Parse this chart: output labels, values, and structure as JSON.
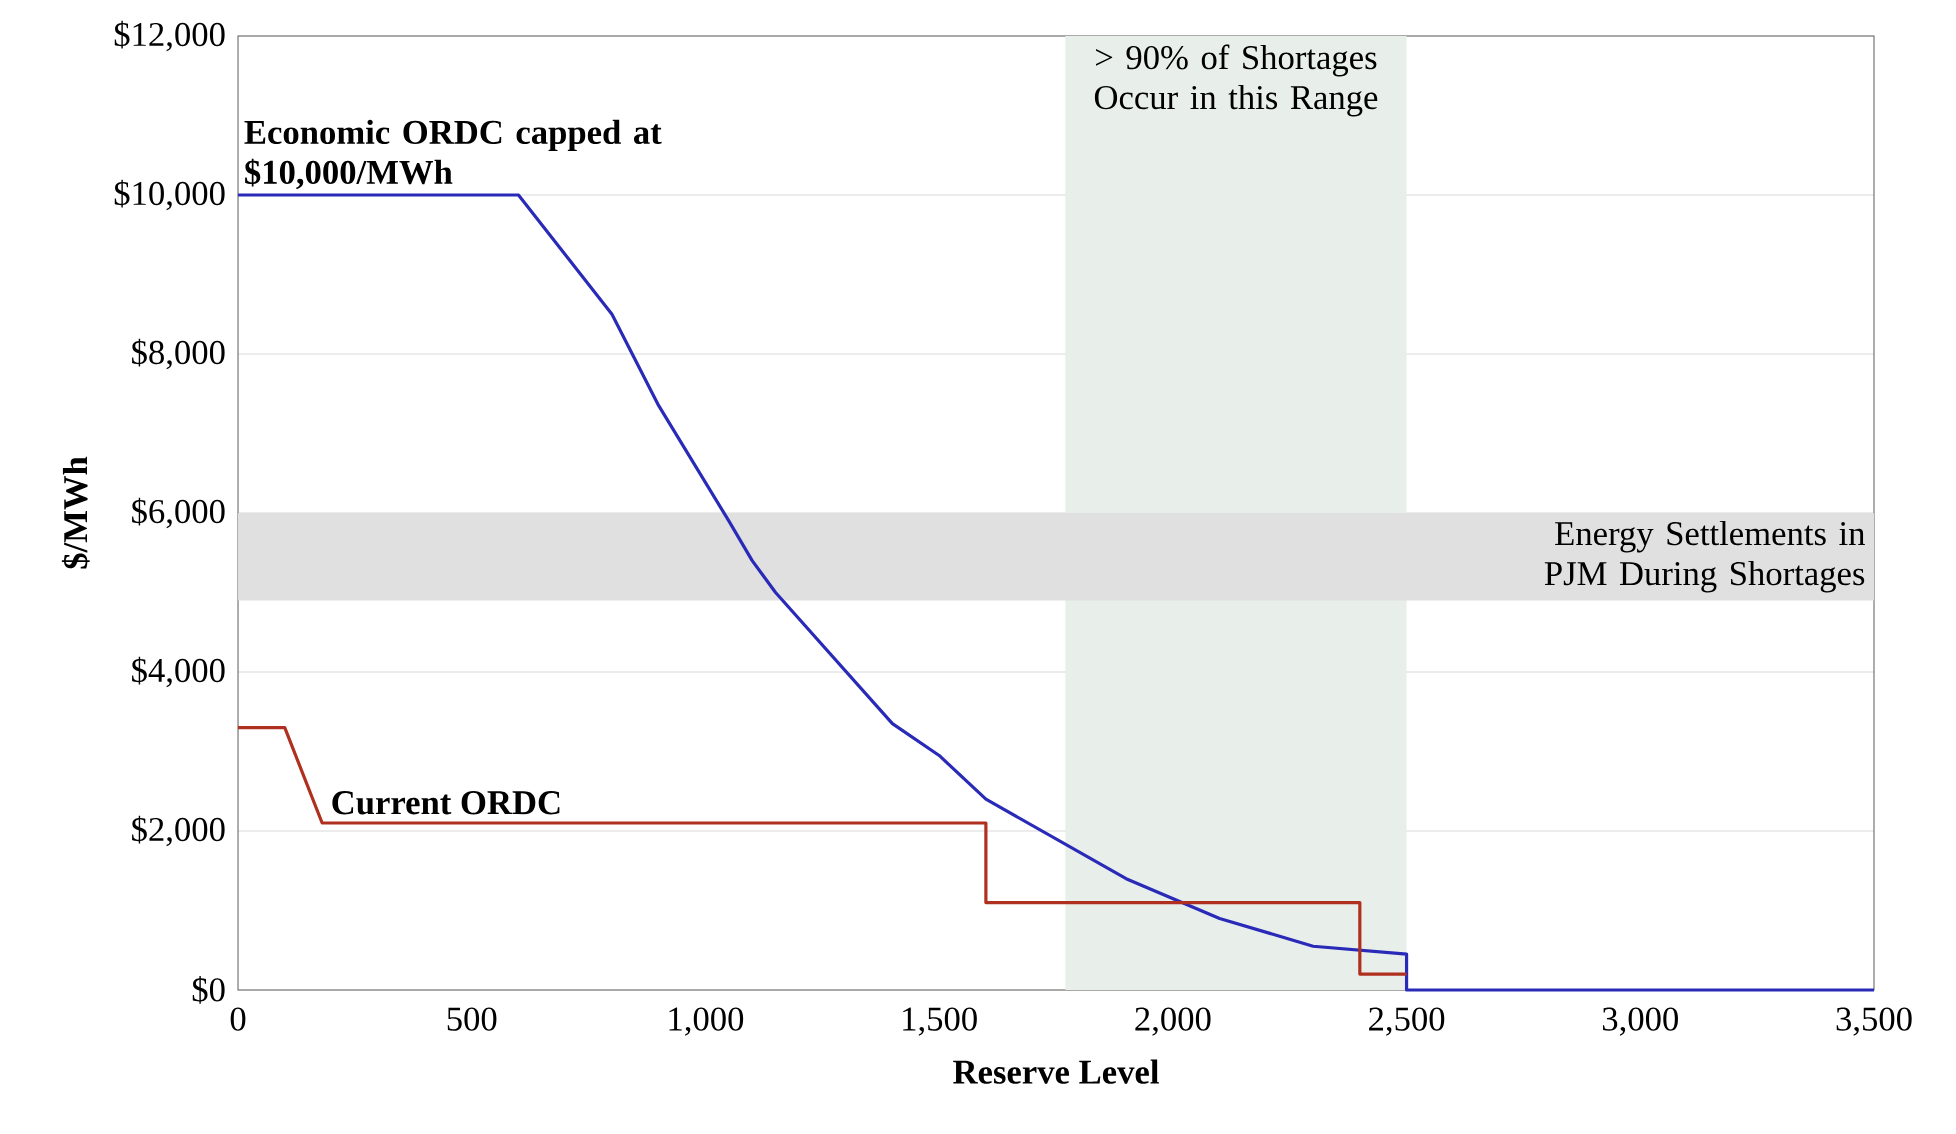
{
  "chart_data": {
    "type": "line",
    "xlabel": "Reserve Level",
    "ylabel": "$/MWh",
    "xlim": [
      0,
      3500
    ],
    "ylim": [
      0,
      12000
    ],
    "xticks": [
      0,
      500,
      {
        "value": 1000,
        "label": "1,000"
      },
      {
        "value": 1500,
        "label": "1,500"
      },
      {
        "value": 2000,
        "label": "2,000"
      },
      {
        "value": 2500,
        "label": "2,500"
      },
      {
        "value": 3000,
        "label": "3,000"
      },
      {
        "value": 3500,
        "label": "3,500"
      }
    ],
    "yticks": [
      {
        "value": 0,
        "label": "$0"
      },
      {
        "value": 2000,
        "label": "$2,000"
      },
      {
        "value": 4000,
        "label": "$4,000"
      },
      {
        "value": 6000,
        "label": "$6,000"
      },
      {
        "value": 8000,
        "label": "$8,000"
      },
      {
        "value": 10000,
        "label": "$10,000"
      },
      {
        "value": 12000,
        "label": "$12,000"
      }
    ],
    "grid": "y",
    "legend": false,
    "marker": "none",
    "line_style": "solid",
    "series": [
      {
        "name": "**Economic ORDC capped at $10,000/MWh**",
        "color": "#2a2ab8",
        "x": [
          0,
          600,
          800,
          900,
          1050,
          1100,
          1150,
          1400,
          1500,
          1600,
          1900,
          2100,
          2300,
          2500,
          2500,
          3500
        ],
        "values": [
          10000,
          10000,
          8500,
          7350,
          5900,
          5400,
          5000,
          3350,
          2950,
          2400,
          1400,
          900,
          550,
          450,
          0,
          0
        ]
      },
      {
        "name": "**Current ORDC**",
        "color": "#b03020",
        "x": [
          0,
          100,
          140,
          180,
          1600,
          1600,
          2400,
          2400,
          2500
        ],
        "values": [
          3300,
          3300,
          2700,
          2100,
          2100,
          1100,
          1100,
          200,
          200
        ]
      }
    ],
    "bands": [
      {
        "axis": "x",
        "from": 1770,
        "to": 2500,
        "label": "> 90% of Shortages Occur in this Range",
        "color": "#e8eeea"
      },
      {
        "axis": "y",
        "from": 4900,
        "to": 6000,
        "label": "Energy Settlements in PJM During Shortages",
        "color": "#e0e0e0"
      }
    ]
  }
}
